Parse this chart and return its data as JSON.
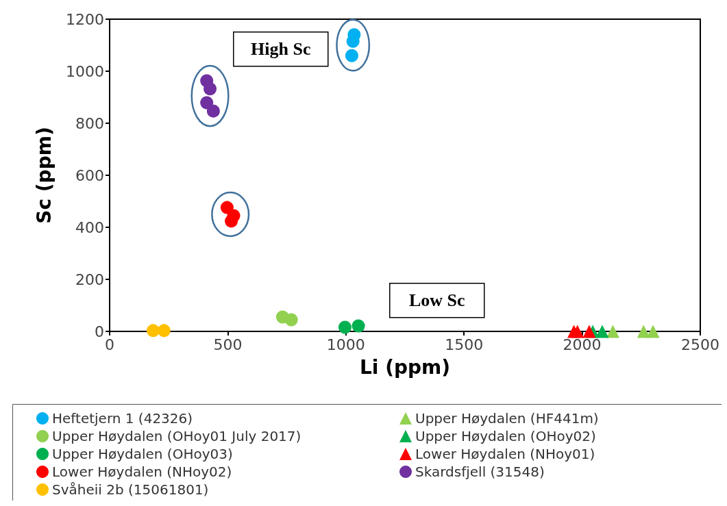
{
  "chart_data": {
    "type": "scatter",
    "xlabel": "Li (ppm)",
    "ylabel": "Sc (ppm)",
    "xlim": [
      0,
      2500
    ],
    "xticks": [
      0,
      500,
      1000,
      1500,
      2000,
      2500
    ],
    "ylim": [
      0,
      1200
    ],
    "yticks": [
      0,
      200,
      400,
      600,
      800,
      1000,
      1200
    ],
    "grid": false,
    "legend": "bottom",
    "annotations": [
      "High Sc",
      "Low Sc"
    ],
    "series": [
      {
        "name": "Heftetjern 1 (42326)",
        "color": "#00b0f0",
        "marker": "circle",
        "x": [
          1035,
          1030,
          1025
        ],
        "values": [
          1140,
          1115,
          1060
        ]
      },
      {
        "name": "Upper Høydalen (HF441m)",
        "color": "#92d050",
        "marker": "triangle",
        "x": [
          2130,
          2260,
          2300
        ],
        "values": [
          0,
          0,
          0
        ]
      },
      {
        "name": "Upper Høydalen (OHoy01 July 2017)",
        "color": "#92d050",
        "marker": "circle",
        "x": [
          732,
          769
        ],
        "values": [
          55,
          45
        ]
      },
      {
        "name": "Upper Høydalen (OHoy02)",
        "color": "#00b050",
        "marker": "triangle",
        "x": [
          2045,
          2085
        ],
        "values": [
          0,
          0
        ]
      },
      {
        "name": "Upper Høydalen (OHoy03)",
        "color": "#00b050",
        "marker": "circle",
        "x": [
          996,
          1053
        ],
        "values": [
          16,
          21
        ]
      },
      {
        "name": "Lower Høydalen (NHoy01)",
        "color": "#ff0000",
        "marker": "triangle",
        "x": [
          1965,
          1980,
          2030
        ],
        "values": [
          0,
          0,
          0
        ]
      },
      {
        "name": "Lower Høydalen (NHoy02)",
        "color": "#ff0000",
        "marker": "circle",
        "x": [
          497,
          525,
          515
        ],
        "values": [
          476,
          445,
          424
        ]
      },
      {
        "name": "Skardsfjell (31548)",
        "color": "#7030a0",
        "marker": "circle",
        "x": [
          411,
          425,
          411,
          439
        ],
        "values": [
          963,
          932,
          879,
          847
        ]
      },
      {
        "name": "Svåheii 2b (15061801)",
        "color": "#ffc000",
        "marker": "circle",
        "x": [
          184,
          230
        ],
        "values": [
          3,
          3
        ]
      }
    ]
  }
}
